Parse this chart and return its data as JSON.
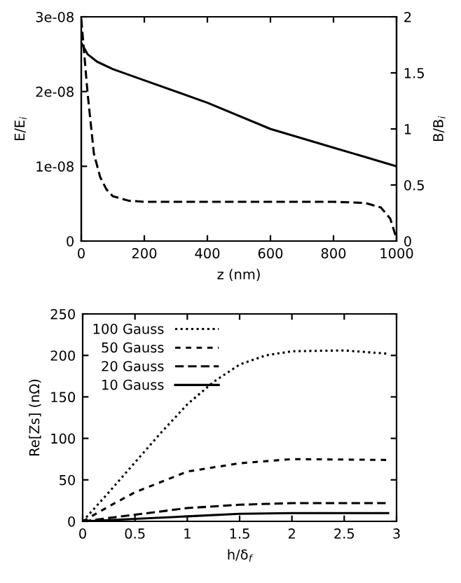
{
  "chart_data": [
    {
      "type": "line",
      "xlabel": "z (nm)",
      "ylabel": "E/E$_{i}$",
      "y2label": "B/B$_{i}$",
      "xlim": [
        0,
        1000
      ],
      "xticks": [
        0,
        200,
        400,
        600,
        800,
        1000
      ],
      "ylim": [
        0,
        3e-08
      ],
      "yticks": [
        {
          "value": 0,
          "label": "0"
        },
        {
          "value": 1e-08,
          "label": "1e-08"
        },
        {
          "value": 2e-08,
          "label": "2e-08"
        },
        {
          "value": 3e-08,
          "label": "3e-08"
        }
      ],
      "y2lim": [
        0,
        2
      ],
      "y2ticks": [
        0,
        0.5,
        1,
        1.5,
        2
      ],
      "grid": false,
      "legend": false,
      "series": [
        {
          "color": "#000000",
          "line_style": "solid",
          "x": [
            0,
            20,
            50,
            100,
            200,
            400,
            600,
            800,
            1000
          ],
          "values": [
            2.65e-08,
            2.5e-08,
            2.4e-08,
            2.3e-08,
            2.15e-08,
            1.85e-08,
            1.5e-08,
            1.25e-08,
            1e-08
          ]
        },
        {
          "color": "#000000",
          "line_style": "dashed",
          "axis": "y2",
          "x": [
            0,
            20,
            40,
            60,
            80,
            100,
            150,
            200,
            400,
            600,
            800,
            900,
            950,
            980,
            1000
          ],
          "values": [
            1.98,
            1.32,
            0.78,
            0.57,
            0.46,
            0.4,
            0.36,
            0.35,
            0.35,
            0.35,
            0.35,
            0.34,
            0.3,
            0.2,
            0.02
          ]
        }
      ]
    },
    {
      "type": "line",
      "xlabel": "h/δ$_{f}$",
      "ylabel": "Re[Zs] (nΩ)",
      "xlim": [
        0,
        3
      ],
      "xticks": [
        0,
        0.5,
        1,
        1.5,
        2,
        2.5,
        3
      ],
      "ylim": [
        0,
        250
      ],
      "yticks": [
        0,
        50,
        100,
        150,
        200,
        250
      ],
      "grid": false,
      "legend": "top left",
      "series": [
        {
          "name": "100 Gauss",
          "color": "#000000",
          "line_style": "dotted",
          "x": [
            0,
            0.25,
            0.5,
            0.75,
            1,
            1.25,
            1.5,
            1.75,
            2,
            2.5,
            2.92
          ],
          "values": [
            0,
            35,
            71,
            107,
            141,
            168,
            189,
            200,
            205,
            206,
            202
          ]
        },
        {
          "name": "50 Gauss",
          "color": "#000000",
          "line_style": "densedashed",
          "x": [
            0,
            0.25,
            0.5,
            1,
            1.5,
            2,
            2.92
          ],
          "values": [
            0,
            18,
            35,
            60,
            70,
            75,
            74
          ]
        },
        {
          "name": "20 Gauss",
          "color": "#000000",
          "line_style": "dashed",
          "x": [
            0,
            0.5,
            1,
            1.5,
            2,
            2.92
          ],
          "values": [
            0,
            8,
            16,
            20,
            22,
            22
          ]
        },
        {
          "name": "10 Gauss",
          "color": "#000000",
          "line_style": "solid",
          "x": [
            0,
            0.5,
            1,
            1.5,
            2,
            2.92
          ],
          "values": [
            0,
            3,
            6,
            9,
            10,
            10
          ]
        }
      ]
    }
  ]
}
